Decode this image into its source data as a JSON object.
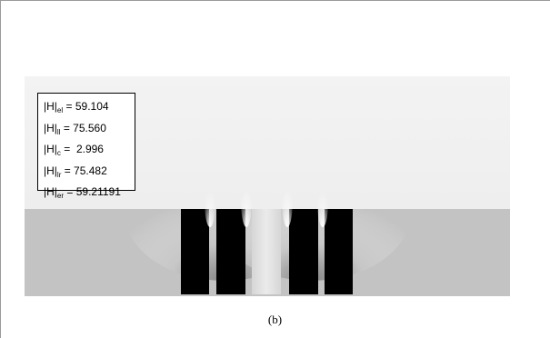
{
  "legend": [
    {
      "name": "H",
      "sub": "el",
      "eq": "= 59.104"
    },
    {
      "name": "H",
      "sub": "ll",
      "eq": "= 75.560"
    },
    {
      "name": "H",
      "sub": "c",
      "eq": "=  2.996"
    },
    {
      "name": "H",
      "sub": "lr",
      "eq": "= 75.482"
    },
    {
      "name": "H",
      "sub": "er",
      "eq": "= 59.21191"
    }
  ],
  "caption": "(b)",
  "colors": {
    "background_field": "#f2f2f2",
    "substrate": "#c2c2c2",
    "electrode": "#000000",
    "center_gap": "#e2e2e2"
  }
}
